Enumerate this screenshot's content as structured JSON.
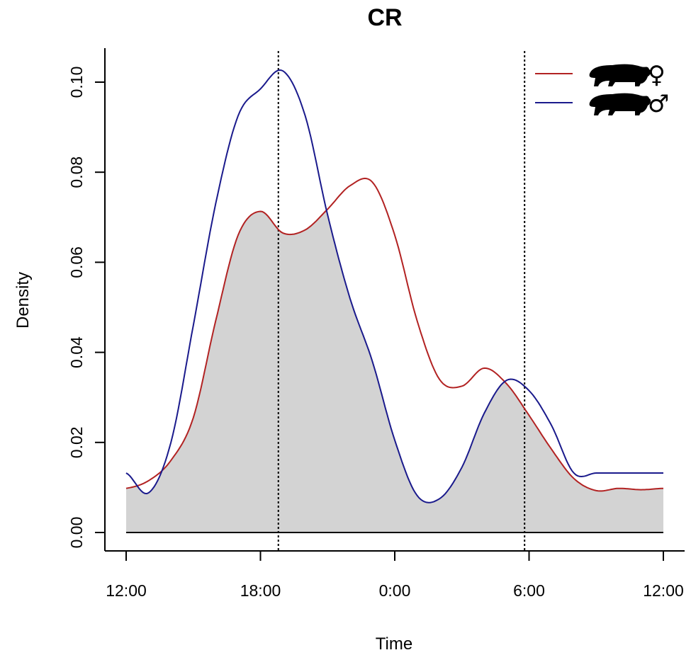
{
  "chart_data": {
    "type": "area",
    "title": "CR",
    "xlabel": "Time",
    "ylabel": "Density",
    "xlim": [
      0,
      24
    ],
    "ylim": [
      0,
      0.105
    ],
    "x_ticks": [
      {
        "value": 0,
        "label": "12:00"
      },
      {
        "value": 6,
        "label": "18:00"
      },
      {
        "value": 12,
        "label": "0:00"
      },
      {
        "value": 18,
        "label": "6:00"
      },
      {
        "value": 24,
        "label": "12:00"
      }
    ],
    "y_ticks": [
      {
        "value": 0,
        "label": "0.00"
      },
      {
        "value": 0.02,
        "label": "0.02"
      },
      {
        "value": 0.04,
        "label": "0.04"
      },
      {
        "value": 0.06,
        "label": "0.06"
      },
      {
        "value": 0.08,
        "label": "0.08"
      },
      {
        "value": 0.1,
        "label": "0.10"
      }
    ],
    "reference_lines": [
      6.8,
      17.8
    ],
    "x": [
      0,
      1,
      2,
      3,
      4,
      5,
      6,
      7,
      8,
      9,
      10,
      11,
      12,
      13,
      14,
      15,
      16,
      17,
      18,
      19,
      20,
      21,
      22,
      23,
      24
    ],
    "series": [
      {
        "name": "female",
        "symbol": "♀",
        "color": "#b22222",
        "values": [
          0.0098,
          0.0115,
          0.016,
          0.0255,
          0.047,
          0.066,
          0.0713,
          0.0665,
          0.0672,
          0.0718,
          0.077,
          0.0778,
          0.066,
          0.047,
          0.034,
          0.0325,
          0.0365,
          0.033,
          0.026,
          0.0185,
          0.012,
          0.0093,
          0.0098,
          0.0095,
          0.0098
        ]
      },
      {
        "name": "male",
        "symbol": "♂",
        "color": "#1a1a8c",
        "values": [
          0.0132,
          0.0088,
          0.02,
          0.046,
          0.073,
          0.0925,
          0.0985,
          0.1025,
          0.0925,
          0.0705,
          0.052,
          0.038,
          0.0205,
          0.0082,
          0.0075,
          0.0145,
          0.0265,
          0.0338,
          0.0315,
          0.0238,
          0.0132,
          0.0132,
          0.0132,
          0.0132,
          0.0132
        ]
      }
    ]
  }
}
